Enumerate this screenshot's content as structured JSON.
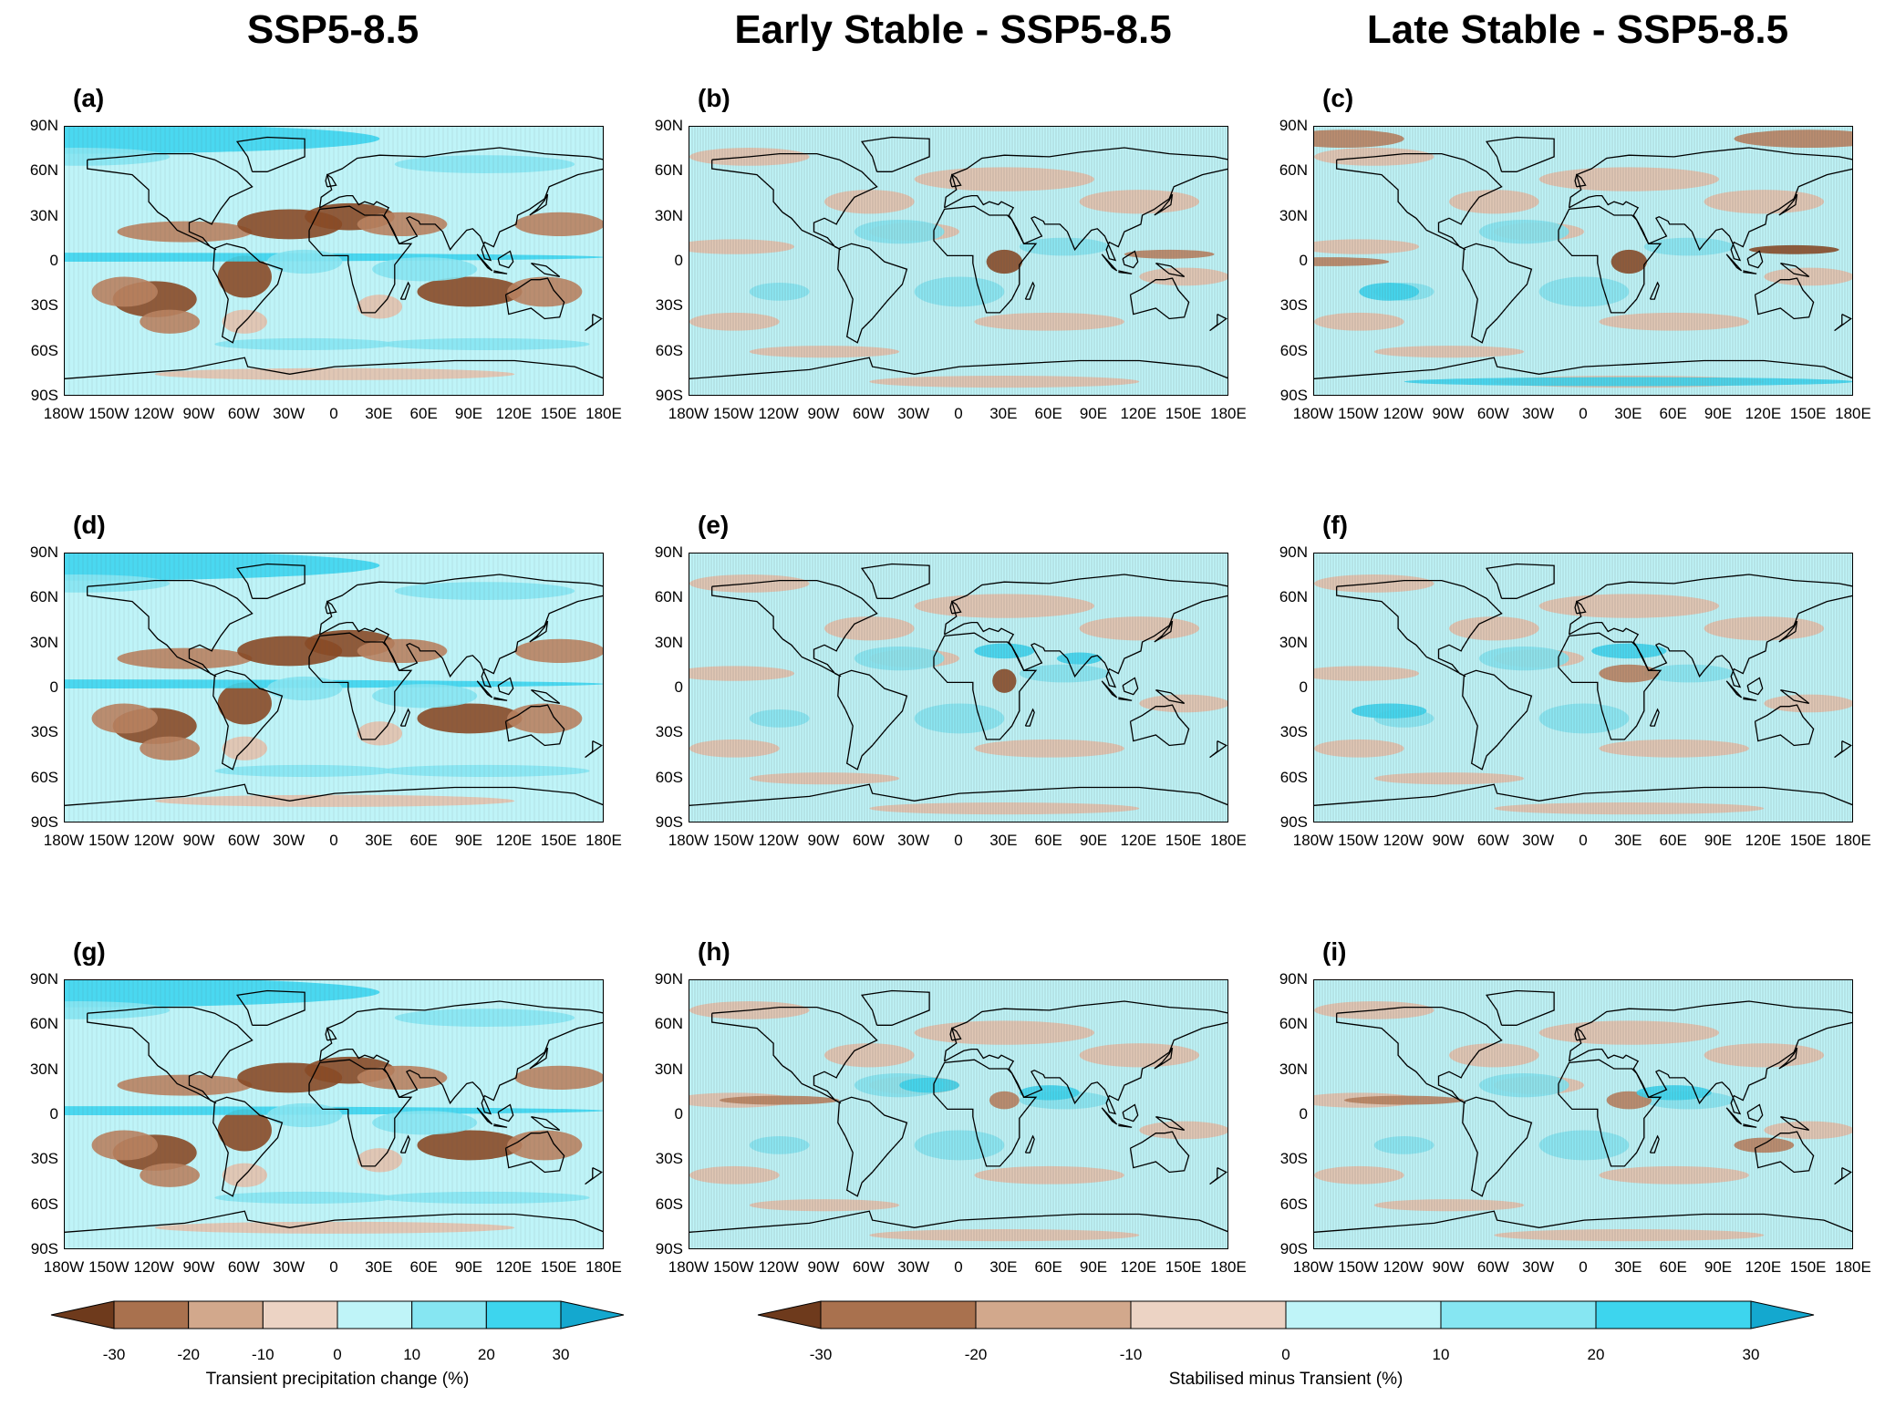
{
  "column_titles": [
    "SSP5-8.5",
    "Early Stable - SSP5-8.5",
    "Late Stable - SSP5-8.5"
  ],
  "panel_labels": [
    "(a)",
    "(b)",
    "(c)",
    "(d)",
    "(e)",
    "(f)",
    "(g)",
    "(h)",
    "(i)"
  ],
  "lat_labels": [
    "90N",
    "60N",
    "30N",
    "0",
    "30S",
    "60S",
    "90S"
  ],
  "lon_labels": [
    "180W",
    "150W",
    "120W",
    "90W",
    "60W",
    "30W",
    "0",
    "30E",
    "60E",
    "90E",
    "120E",
    "150E",
    "180E"
  ],
  "colorbar_left": {
    "title": "Transient precipitation change (%)",
    "ticks": [
      "-30",
      "-20",
      "-10",
      "0",
      "10",
      "20",
      "30"
    ],
    "colors": [
      "#6e3a1c",
      "#a9714e",
      "#d2a88c",
      "#ecd3c4",
      "#bff4f8",
      "#86e6f2",
      "#3dd5ee",
      "#14a8cf"
    ]
  },
  "colorbar_right": {
    "title": "Stabilised minus Transient (%)",
    "ticks": [
      "-30",
      "-20",
      "-10",
      "0",
      "10",
      "20",
      "30"
    ],
    "colors": [
      "#6e3a1c",
      "#a9714e",
      "#d2a88c",
      "#ecd3c4",
      "#bff4f8",
      "#86e6f2",
      "#3dd5ee",
      "#14a8cf"
    ]
  },
  "map_colors": {
    "ocean_base_left": "#bff4f8",
    "ocean_base_diff": "#bff4f8",
    "brown_dark": "#8a4a26",
    "brown_mid": "#b98260",
    "brown_light": "#e3c2ad",
    "cyan_mid": "#86e6f2",
    "cyan_strong": "#3dd5ee",
    "cyan_dark": "#14a8cf",
    "hatch": "#555555",
    "coast": "#000000"
  }
}
